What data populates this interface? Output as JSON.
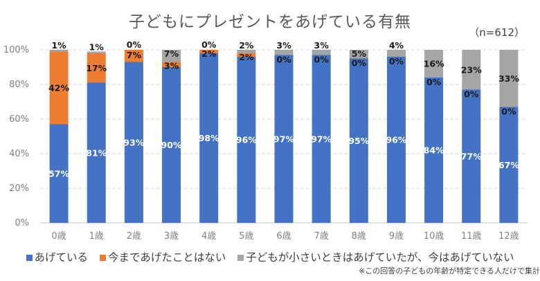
{
  "chart_data": {
    "type": "bar",
    "stacked": true,
    "title": "子どもにプレゼントをあげている有無",
    "subtitle": "（n=612）",
    "note": "※この回答の子どもの年齢が特定できる人だけで集計",
    "xlabel": "",
    "ylabel": "",
    "ylim": [
      0,
      100
    ],
    "yticks": [
      "0%",
      "20%",
      "40%",
      "60%",
      "80%",
      "100%"
    ],
    "ytick_values": [
      0,
      20,
      40,
      60,
      80,
      100
    ],
    "grid": "horizontal-dashed",
    "legend_position": "bottom",
    "categories": [
      "0歳",
      "1歳",
      "2歳",
      "3歳",
      "4歳",
      "5歳",
      "6歳",
      "7歳",
      "8歳",
      "9歳",
      "10歳",
      "11歳",
      "12歳"
    ],
    "series": [
      {
        "name": "あげている",
        "color": "#4472c4",
        "label_color": "#ffffff",
        "values": [
          57,
          81,
          93,
          90,
          98,
          96,
          97,
          97,
          95,
          96,
          84,
          77,
          67
        ]
      },
      {
        "name": "今まであげたことはない",
        "color": "#ed7d31",
        "label_color": "#1a1a1a",
        "values": [
          42,
          17,
          7,
          3,
          2,
          2,
          0,
          0,
          0,
          0,
          0,
          0,
          0
        ]
      },
      {
        "name": "子どもが小さいときはあげていたが、今はあげていない",
        "color": "#a5a5a5",
        "label_color": "#1a1a1a",
        "values": [
          1,
          1,
          0,
          7,
          0,
          2,
          3,
          3,
          5,
          4,
          16,
          23,
          33
        ]
      }
    ]
  }
}
